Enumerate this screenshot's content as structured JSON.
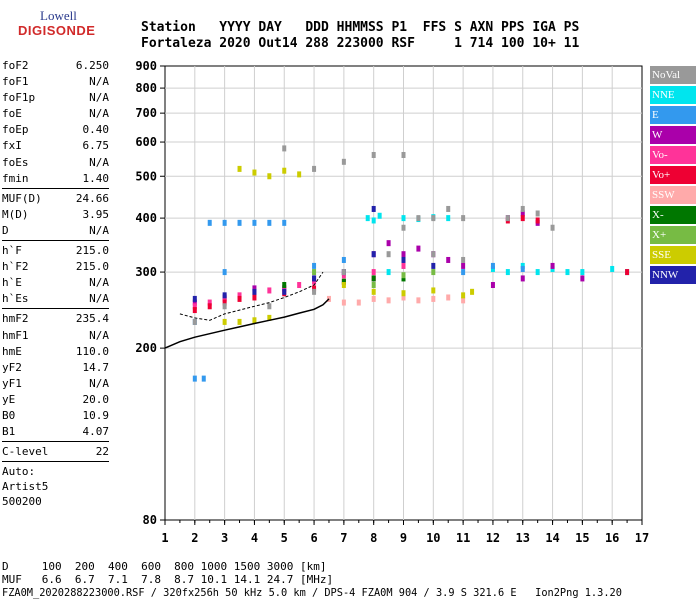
{
  "logo": {
    "line1": "Lowell",
    "line2": "DIGISONDE"
  },
  "header": {
    "line1": "Station   YYYY DAY   DDD HHMMSS P1  FFS S AXN PPS IGA PS",
    "line2": "Fortaleza 2020 Out14 288 223000 RSF     1 714 100 10+ 11"
  },
  "params": {
    "group1": [
      {
        "label": "foF2",
        "value": "6.250"
      },
      {
        "label": "foF1",
        "value": "N/A"
      },
      {
        "label": "foF1p",
        "value": "N/A"
      },
      {
        "label": "foE",
        "value": "N/A"
      },
      {
        "label": "foEp",
        "value": "0.40"
      },
      {
        "label": "fxI",
        "value": "6.75"
      },
      {
        "label": "foEs",
        "value": "N/A"
      },
      {
        "label": "fmin",
        "value": "1.40"
      }
    ],
    "group2": [
      {
        "label": "MUF(D)",
        "value": "24.66"
      },
      {
        "label": "M(D)",
        "value": "3.95"
      },
      {
        "label": "D",
        "value": "N/A"
      }
    ],
    "group3": [
      {
        "label": "h`F",
        "value": "215.0"
      },
      {
        "label": "h`F2",
        "value": "215.0"
      },
      {
        "label": "h`E",
        "value": "N/A"
      },
      {
        "label": "h`Es",
        "value": "N/A"
      }
    ],
    "group4": [
      {
        "label": "hmF2",
        "value": "235.4"
      },
      {
        "label": "hmF1",
        "value": "N/A"
      },
      {
        "label": "hmE",
        "value": "110.0"
      },
      {
        "label": "yF2",
        "value": "14.7"
      },
      {
        "label": "yF1",
        "value": "N/A"
      },
      {
        "label": "yE",
        "value": "20.0"
      },
      {
        "label": "B0",
        "value": "10.9"
      },
      {
        "label": "B1",
        "value": "4.07"
      }
    ],
    "group5": [
      {
        "label": "C-level",
        "value": "22"
      }
    ],
    "auto": [
      "Auto:",
      "Artist5",
      "500200"
    ]
  },
  "legend": [
    {
      "label": "NoVal",
      "color": "#999999"
    },
    {
      "label": "NNE",
      "color": "#00e5ee"
    },
    {
      "label": "E",
      "color": "#3399ee"
    },
    {
      "label": "W",
      "color": "#aa00aa"
    },
    {
      "label": "Vo-",
      "color": "#ff3399"
    },
    {
      "label": "Vo+",
      "color": "#ee0033"
    },
    {
      "label": "SSW",
      "color": "#ffaaaa"
    },
    {
      "label": "X-",
      "color": "#007700"
    },
    {
      "label": "X+",
      "color": "#77bb44"
    },
    {
      "label": "SSE",
      "color": "#cccc00"
    },
    {
      "label": "NNW",
      "color": "#2222aa"
    }
  ],
  "footer": {
    "line1": "D     100  200  400  600  800 1000 1500 3000 [km]",
    "line2": "MUF   6.6  6.7  7.1  7.8  8.7 10.1 14.1 24.7 [MHz]",
    "line3": "FZA0M_2020288223000.RSF / 320fx256h 50 kHz 5.0 km / DPS-4 FZA0M 904 / 3.9 S 321.6 E   Ion2Png 1.3.20"
  },
  "chart_data": {
    "type": "scatter",
    "xlim": [
      1,
      17
    ],
    "ylim": [
      80,
      900
    ],
    "x_ticks": [
      1,
      2,
      3,
      4,
      5,
      6,
      7,
      8,
      9,
      10,
      11,
      12,
      13,
      14,
      15,
      16,
      17
    ],
    "y_ticks": [
      80,
      200,
      300,
      400,
      500,
      600,
      700,
      800,
      900
    ],
    "y_scale": "log",
    "grid": true,
    "legend_position": "right",
    "series": [
      {
        "name": "NNE",
        "color": "#00e5ee",
        "points": [
          [
            7.8,
            400
          ],
          [
            8.0,
            395
          ],
          [
            8.2,
            405
          ],
          [
            9.0,
            400
          ],
          [
            9.5,
            398
          ],
          [
            10.0,
            402
          ],
          [
            10.5,
            400
          ],
          [
            12.0,
            305
          ],
          [
            12.5,
            300
          ],
          [
            13.0,
            310
          ],
          [
            13.5,
            300
          ],
          [
            14.0,
            305
          ],
          [
            14.5,
            300
          ],
          [
            15.0,
            300
          ],
          [
            16.0,
            305
          ],
          [
            16.5,
            300
          ],
          [
            8.5,
            300
          ],
          [
            9.0,
            310
          ]
        ]
      },
      {
        "name": "E",
        "color": "#3399ee",
        "points": [
          [
            2.5,
            390
          ],
          [
            3.0,
            390
          ],
          [
            3.5,
            390
          ],
          [
            4.0,
            390
          ],
          [
            4.5,
            390
          ],
          [
            5.0,
            390
          ],
          [
            2.0,
            230
          ],
          [
            3.0,
            300
          ],
          [
            6.0,
            310
          ],
          [
            7.0,
            320
          ],
          [
            11.0,
            300
          ],
          [
            12.0,
            310
          ],
          [
            13.0,
            305
          ],
          [
            2.0,
            170
          ],
          [
            2.3,
            170
          ]
        ]
      },
      {
        "name": "W",
        "color": "#aa00aa",
        "points": [
          [
            2.0,
            255
          ],
          [
            3.0,
            262
          ],
          [
            4.0,
            275
          ],
          [
            5.0,
            275
          ],
          [
            6.0,
            290
          ],
          [
            7.0,
            300
          ],
          [
            8.0,
            330
          ],
          [
            8.5,
            350
          ],
          [
            9.0,
            330
          ],
          [
            9.5,
            340
          ],
          [
            10.0,
            330
          ],
          [
            10.5,
            320
          ],
          [
            11.0,
            310
          ],
          [
            12.5,
            400
          ],
          [
            13.0,
            410
          ],
          [
            13.5,
            390
          ],
          [
            14.0,
            310
          ],
          [
            15.0,
            290
          ],
          [
            12.0,
            280
          ],
          [
            13.0,
            290
          ]
        ]
      },
      {
        "name": "Vo-",
        "color": "#ff3399",
        "points": [
          [
            2.0,
            250
          ],
          [
            2.5,
            255
          ],
          [
            3.0,
            260
          ],
          [
            3.5,
            265
          ],
          [
            4.0,
            270
          ],
          [
            4.5,
            272
          ],
          [
            5.0,
            275
          ],
          [
            5.5,
            280
          ],
          [
            6.0,
            285
          ],
          [
            7.0,
            295
          ],
          [
            8.0,
            300
          ],
          [
            9.0,
            310
          ]
        ]
      },
      {
        "name": "Vo+",
        "color": "#ee0033",
        "points": [
          [
            2.0,
            245
          ],
          [
            2.5,
            250
          ],
          [
            3.0,
            255
          ],
          [
            3.5,
            260
          ],
          [
            4.0,
            262
          ],
          [
            5.0,
            268
          ],
          [
            6.0,
            275
          ],
          [
            7.0,
            285
          ],
          [
            8.0,
            290
          ],
          [
            12.5,
            395
          ],
          [
            13.0,
            400
          ],
          [
            13.5,
            395
          ],
          [
            16.5,
            300
          ]
        ]
      },
      {
        "name": "SSW",
        "color": "#ffaaaa",
        "points": [
          [
            7.0,
            255
          ],
          [
            7.5,
            255
          ],
          [
            8.0,
            260
          ],
          [
            8.5,
            258
          ],
          [
            9.0,
            262
          ],
          [
            9.5,
            258
          ],
          [
            10.0,
            260
          ],
          [
            10.5,
            262
          ],
          [
            11.0,
            258
          ],
          [
            6.5,
            260
          ]
        ]
      },
      {
        "name": "X-",
        "color": "#007700",
        "points": [
          [
            5.0,
            280
          ],
          [
            7.0,
            285
          ],
          [
            8.0,
            290
          ],
          [
            9.0,
            290
          ]
        ]
      },
      {
        "name": "X+",
        "color": "#77bb44",
        "points": [
          [
            6.0,
            300
          ],
          [
            8.0,
            280
          ],
          [
            9.0,
            295
          ],
          [
            10.0,
            300
          ]
        ]
      },
      {
        "name": "SSE",
        "color": "#cccc00",
        "points": [
          [
            3.0,
            230
          ],
          [
            3.5,
            230
          ],
          [
            4.0,
            232
          ],
          [
            4.5,
            235
          ],
          [
            3.5,
            520
          ],
          [
            4.0,
            510
          ],
          [
            4.5,
            500
          ],
          [
            5.0,
            515
          ],
          [
            5.5,
            505
          ],
          [
            7.0,
            280
          ],
          [
            8.0,
            270
          ],
          [
            9.0,
            268
          ],
          [
            10.0,
            272
          ],
          [
            11.0,
            265
          ],
          [
            11.3,
            270
          ]
        ]
      },
      {
        "name": "NNW",
        "color": "#2222aa",
        "points": [
          [
            2.0,
            260
          ],
          [
            3.0,
            265
          ],
          [
            4.0,
            270
          ],
          [
            5.0,
            270
          ],
          [
            6.0,
            290
          ],
          [
            7.0,
            300
          ],
          [
            8.0,
            330
          ],
          [
            8.0,
            420
          ],
          [
            9.0,
            320
          ],
          [
            10.0,
            310
          ]
        ]
      },
      {
        "name": "NoVal",
        "color": "#999999",
        "points": [
          [
            2.0,
            230
          ],
          [
            3.0,
            250
          ],
          [
            4.5,
            250
          ],
          [
            6.0,
            270
          ],
          [
            7.0,
            300
          ],
          [
            8.5,
            330
          ],
          [
            9.0,
            380
          ],
          [
            10.0,
            330
          ],
          [
            11.0,
            320
          ],
          [
            5.0,
            580
          ],
          [
            6.0,
            520
          ],
          [
            7.0,
            540
          ],
          [
            8.0,
            560
          ],
          [
            9.0,
            560
          ],
          [
            9.5,
            400
          ],
          [
            10.0,
            400
          ],
          [
            10.5,
            420
          ],
          [
            11.0,
            400
          ],
          [
            12.5,
            400
          ],
          [
            13.0,
            420
          ],
          [
            13.5,
            410
          ],
          [
            14.0,
            380
          ]
        ]
      }
    ],
    "trace": {
      "name": "trace",
      "color": "#000000",
      "points": [
        [
          1.0,
          200
        ],
        [
          1.5,
          207
        ],
        [
          2.0,
          212
        ],
        [
          2.5,
          216
        ],
        [
          3.0,
          220
        ],
        [
          3.5,
          224
        ],
        [
          4.0,
          228
        ],
        [
          4.5,
          232
        ],
        [
          5.0,
          236
        ],
        [
          5.5,
          241
        ],
        [
          6.0,
          246
        ],
        [
          6.3,
          252
        ],
        [
          6.5,
          260
        ]
      ]
    },
    "trace2": {
      "name": "trace2",
      "color": "#000000",
      "points": [
        [
          1.5,
          240
        ],
        [
          2.0,
          235
        ],
        [
          2.5,
          232
        ],
        [
          3.0,
          240
        ],
        [
          3.5,
          245
        ],
        [
          4.0,
          250
        ],
        [
          4.5,
          255
        ],
        [
          5.0,
          262
        ],
        [
          5.5,
          270
        ],
        [
          6.0,
          280
        ],
        [
          6.3,
          300
        ]
      ]
    }
  }
}
